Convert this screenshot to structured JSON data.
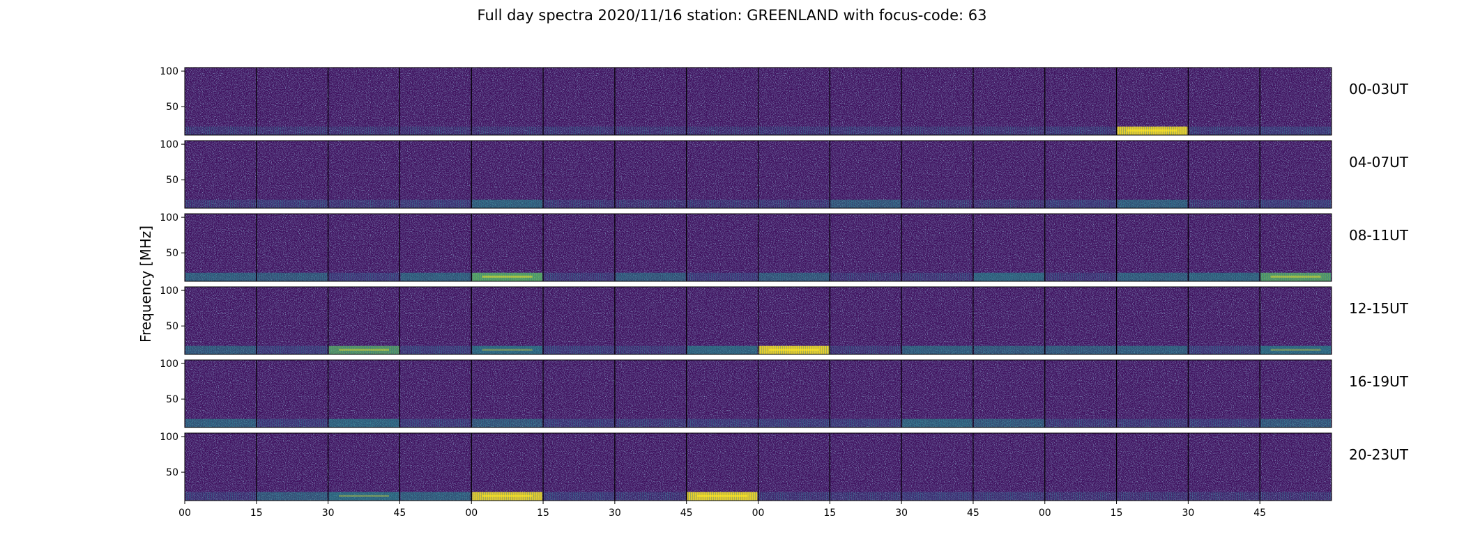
{
  "chart_data": {
    "type": "heatmap",
    "title": "Full day spectra 2020/11/16 station: GREENLAND with focus-code: 63",
    "ylabel": "Frequency [MHz]",
    "xlabel": "",
    "y_ticks": [
      100,
      50
    ],
    "ylim": [
      10,
      105
    ],
    "x_ticks": [
      "00",
      "15",
      "30",
      "45",
      "00",
      "15",
      "30",
      "45",
      "00",
      "15",
      "30",
      "45",
      "00",
      "15",
      "30",
      "45"
    ],
    "panels_per_row": 16,
    "grid": false,
    "colormap": [
      "#440154",
      "#3b528b",
      "#21918c",
      "#5ec962",
      "#fde725"
    ],
    "background_color": "#40125f",
    "rows": [
      {
        "label": "00-03UT",
        "low_band_level": [
          0.15,
          0.1,
          0.1,
          0.1,
          0.1,
          0.15,
          0.1,
          0.05,
          0.15,
          0.2,
          0.1,
          0.1,
          0.2,
          0.95,
          0.2,
          0.35
        ]
      },
      {
        "label": "04-07UT",
        "low_band_level": [
          0.15,
          0.35,
          0.2,
          0.35,
          0.5,
          0.15,
          0.1,
          0.15,
          0.2,
          0.4,
          0.1,
          0.1,
          0.35,
          0.45,
          0.15,
          0.35
        ]
      },
      {
        "label": "08-11UT",
        "low_band_level": [
          0.45,
          0.4,
          0.35,
          0.45,
          0.8,
          0.25,
          0.4,
          0.3,
          0.4,
          0.15,
          0.2,
          0.55,
          0.2,
          0.45,
          0.5,
          0.75
        ]
      },
      {
        "label": "12-15UT",
        "low_band_level": [
          0.4,
          0.35,
          0.7,
          0.35,
          0.6,
          0.3,
          0.25,
          0.55,
          0.95,
          0.2,
          0.45,
          0.4,
          0.4,
          0.45,
          0.35,
          0.6
        ]
      },
      {
        "label": "16-19UT",
        "low_band_level": [
          0.45,
          0.35,
          0.55,
          0.3,
          0.4,
          0.3,
          0.25,
          0.3,
          0.35,
          0.35,
          0.5,
          0.4,
          0.25,
          0.25,
          0.3,
          0.4
        ]
      },
      {
        "label": "20-23UT",
        "low_band_level": [
          0.2,
          0.4,
          0.6,
          0.45,
          0.9,
          0.3,
          0.15,
          0.95,
          0.15,
          0.15,
          0.3,
          0.25,
          0.1,
          0.1,
          0.1,
          0.1
        ]
      }
    ]
  }
}
